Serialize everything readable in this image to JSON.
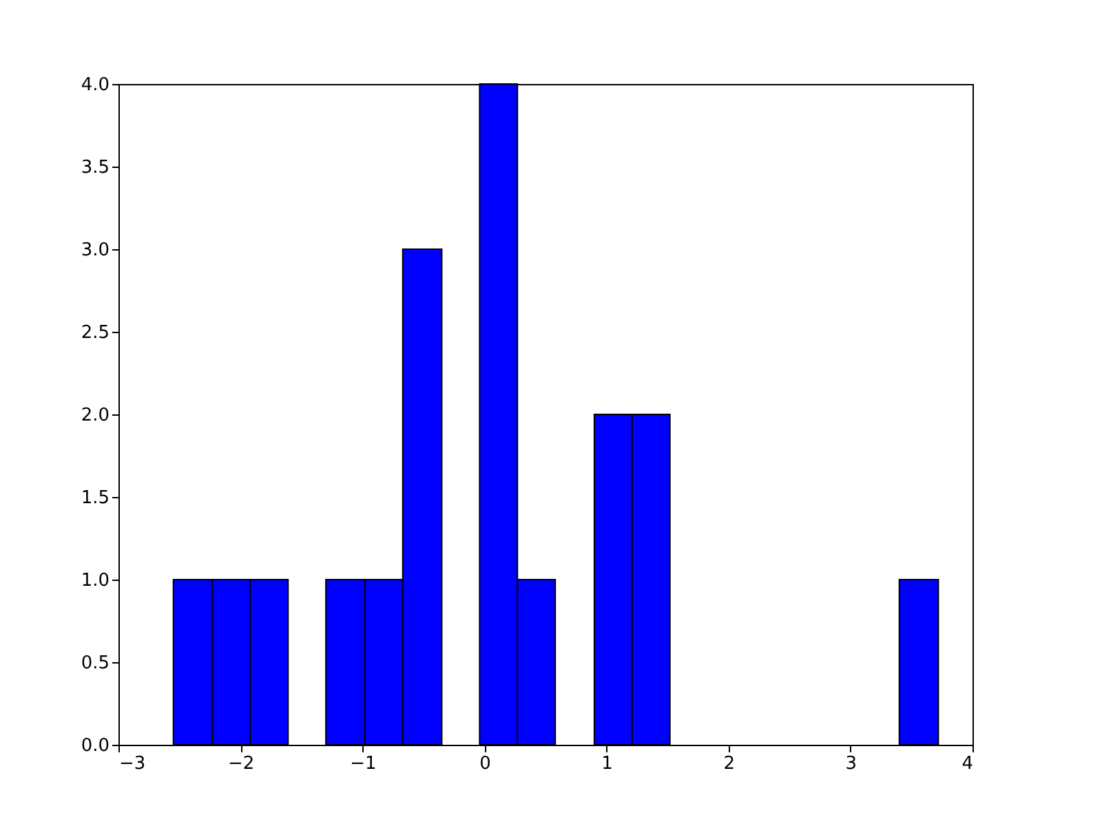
{
  "chart_data": {
    "type": "histogram",
    "bins": [
      -2.55,
      -2.23,
      -1.92,
      -1.61,
      -1.3,
      -0.98,
      -0.67,
      -0.35,
      -0.04,
      0.27,
      0.58,
      0.9,
      1.21,
      1.52,
      3.4,
      3.72
    ],
    "values": [
      1,
      1,
      1,
      0,
      1,
      1,
      3,
      0,
      4,
      1,
      0,
      2,
      2,
      0,
      1
    ],
    "color": "#0000ff",
    "xlim": [
      -3,
      4
    ],
    "xticks": [
      {
        "value": -3,
        "label": "−3"
      },
      {
        "value": -2,
        "label": "−2"
      },
      {
        "value": -1,
        "label": "−1"
      },
      0,
      1,
      2,
      3,
      4
    ],
    "ylim": [
      0,
      4
    ],
    "yticks": [
      {
        "value": 0,
        "label": "0.0"
      },
      {
        "value": 0.5,
        "label": "0.5"
      },
      {
        "value": 1,
        "label": "1.0"
      },
      {
        "value": 1.5,
        "label": "1.5"
      },
      {
        "value": 2,
        "label": "2.0"
      },
      {
        "value": 2.5,
        "label": "2.5"
      },
      {
        "value": 3,
        "label": "3.0"
      },
      {
        "value": 3.5,
        "label": "3.5"
      },
      {
        "value": 4,
        "label": "4.0"
      }
    ],
    "grid": false
  }
}
